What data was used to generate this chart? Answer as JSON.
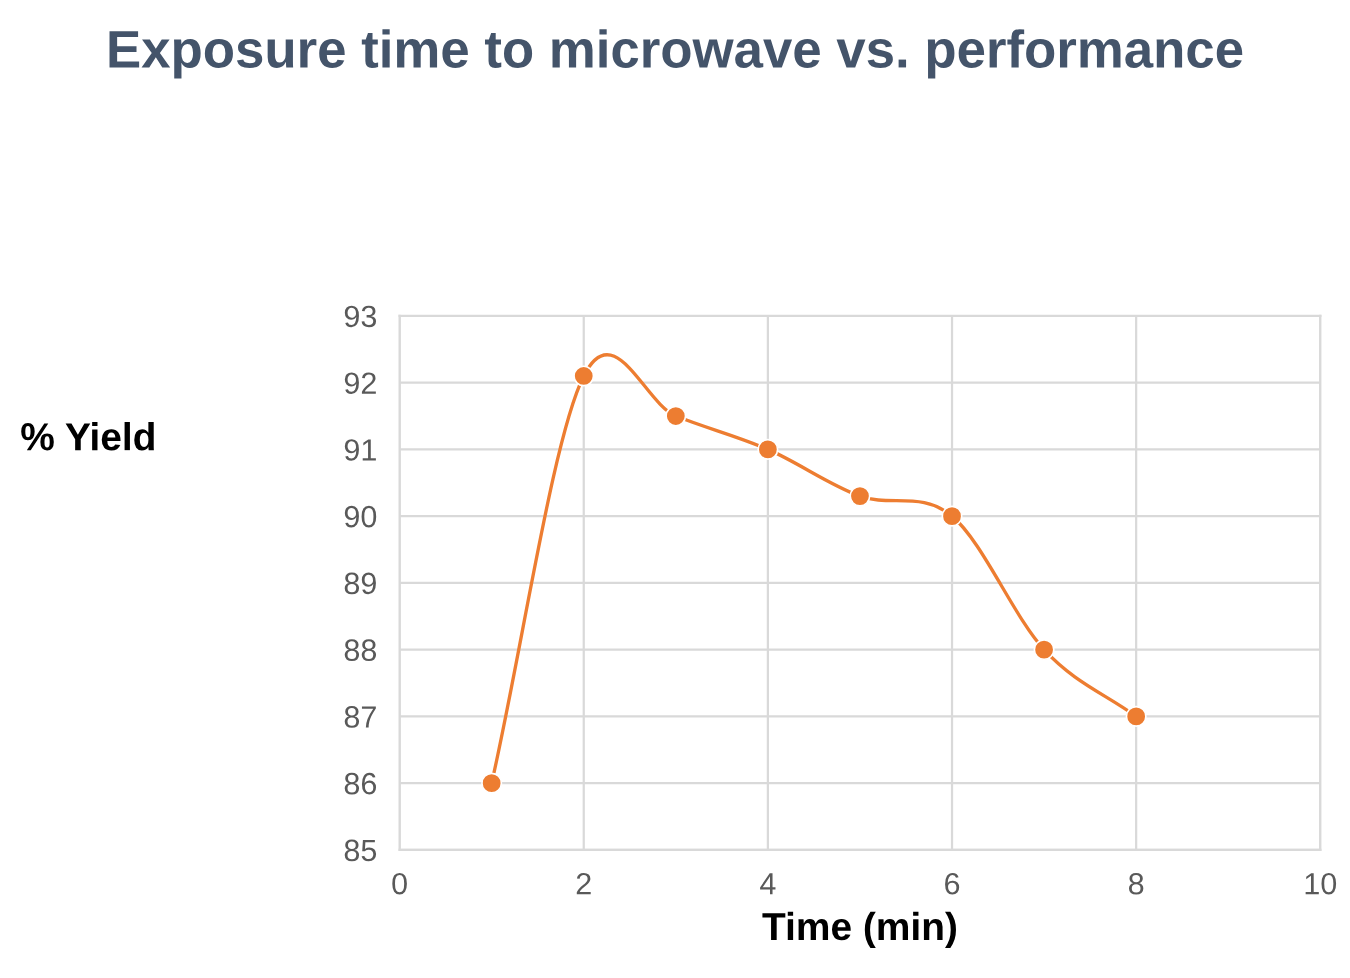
{
  "chart_data": {
    "type": "line",
    "title": "Exposure time to microwave vs. performance",
    "xlabel": "Time (min)",
    "ylabel": "% Yield",
    "x": [
      1,
      2,
      3,
      4,
      5,
      6,
      7,
      8
    ],
    "series": [
      {
        "color": "#ed7d31",
        "values": [
          86,
          92.1,
          91.5,
          91,
          90.3,
          90,
          88,
          87
        ]
      }
    ],
    "xlim": [
      0,
      10
    ],
    "xticks": [
      0,
      2,
      4,
      6,
      8,
      10
    ],
    "ylim": [
      85,
      93
    ],
    "yticks": [
      85,
      86,
      87,
      88,
      89,
      90,
      91,
      92,
      93
    ],
    "grid": true,
    "marker": "circle",
    "line_style": "solid"
  }
}
